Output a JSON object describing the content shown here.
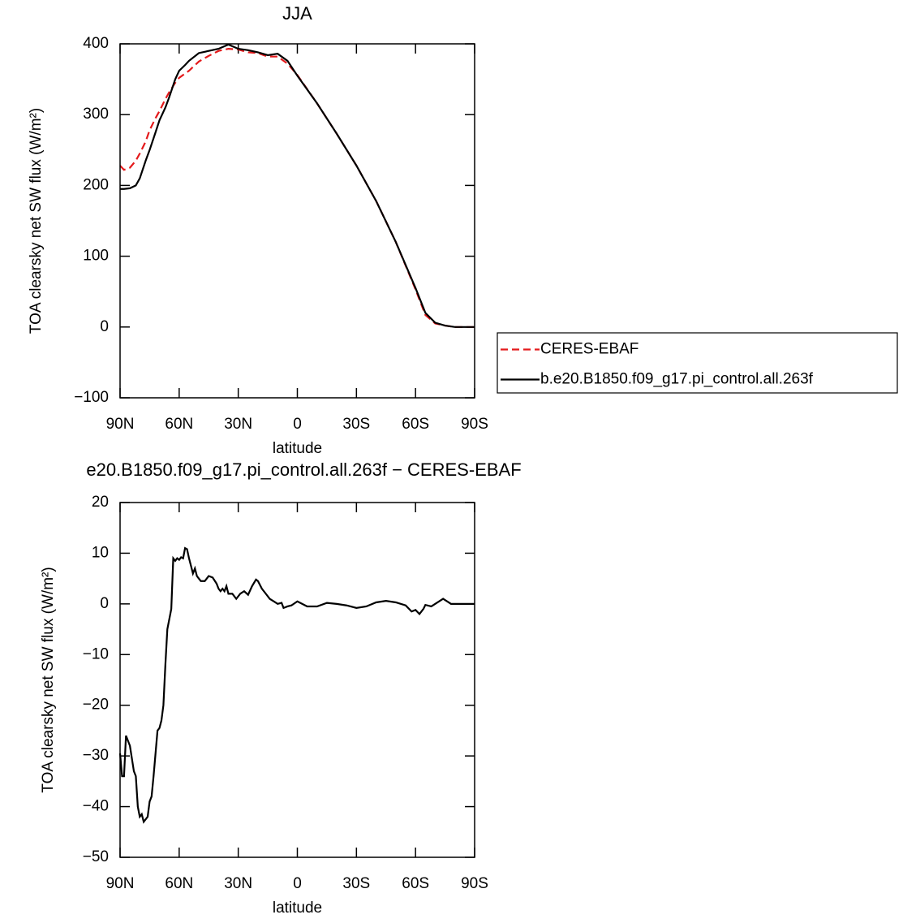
{
  "chart_data": [
    {
      "type": "line",
      "title": "JJA",
      "xlabel": "latitude",
      "ylabel": "TOA clearsky net SW flux (W/m²)",
      "xlim": [
        90,
        -90
      ],
      "xticks": [
        {
          "value": 90,
          "label": "90N"
        },
        {
          "value": 60,
          "label": "60N"
        },
        {
          "value": 30,
          "label": "30N"
        },
        0,
        {
          "value": -30,
          "label": "30S"
        },
        {
          "value": -60,
          "label": "60S"
        },
        {
          "value": -90,
          "label": "90S"
        }
      ],
      "ylim": [
        -100,
        400
      ],
      "yticks": [
        {
          "value": -100,
          "label": "−100"
        },
        0,
        100,
        200,
        300,
        400
      ],
      "legend": "outside-right",
      "x": [
        90,
        88,
        85,
        82,
        80,
        77,
        75,
        72,
        70,
        67,
        65,
        62,
        60,
        57,
        55,
        50,
        45,
        40,
        35,
        30,
        25,
        20,
        15,
        10,
        5,
        0,
        -10,
        -20,
        -30,
        -40,
        -50,
        -60,
        -65,
        -70,
        -75,
        -80,
        -90
      ],
      "series": [
        {
          "name": "CERES-EBAF",
          "color": "#e41a1c",
          "dash": true,
          "values": [
            228,
            222,
            225,
            235,
            245,
            262,
            278,
            295,
            305,
            322,
            332,
            345,
            352,
            358,
            362,
            375,
            383,
            390,
            393,
            392,
            388,
            387,
            382,
            382,
            372,
            356,
            316,
            273,
            228,
            178,
            120,
            53,
            17,
            5,
            2,
            0,
            0
          ]
        },
        {
          "name": "b.e20.B1850.f09_g17.pi_control.all.263f",
          "color": "#000000",
          "dash": false,
          "values": [
            195,
            195,
            196,
            200,
            210,
            235,
            250,
            275,
            292,
            310,
            325,
            350,
            362,
            370,
            376,
            387,
            390,
            393,
            399,
            393,
            391,
            388,
            384,
            386,
            376,
            355,
            316,
            273,
            228,
            178,
            120,
            55,
            20,
            6,
            2,
            0,
            0
          ]
        }
      ]
    },
    {
      "type": "line",
      "title": "e20.B1850.f09_g17.pi_control.all.263f − CERES-EBAF",
      "xlabel": "latitude",
      "ylabel": "TOA clearsky net SW flux (W/m²)",
      "xlim": [
        90,
        -90
      ],
      "xticks": [
        {
          "value": 90,
          "label": "90N"
        },
        {
          "value": 60,
          "label": "60N"
        },
        {
          "value": 30,
          "label": "30N"
        },
        0,
        {
          "value": -30,
          "label": "30S"
        },
        {
          "value": -60,
          "label": "60S"
        },
        {
          "value": -90,
          "label": "90S"
        }
      ],
      "ylim": [
        -50,
        20
      ],
      "yticks": [
        {
          "value": -50,
          "label": "−50"
        },
        {
          "value": -40,
          "label": "−40"
        },
        {
          "value": -30,
          "label": "−30"
        },
        {
          "value": -20,
          "label": "−20"
        },
        {
          "value": -10,
          "label": "−10"
        },
        0,
        10,
        20
      ],
      "x": [
        90,
        89,
        88,
        87,
        85,
        83,
        82,
        81,
        80,
        79,
        78,
        76,
        75,
        74,
        73,
        71,
        70,
        69,
        68,
        67,
        66,
        65,
        64,
        63,
        62,
        61,
        60,
        59,
        58,
        57,
        56,
        55,
        54,
        53,
        52,
        51,
        50,
        49,
        47,
        46,
        45,
        43,
        41,
        40,
        39,
        38,
        37,
        36,
        35,
        33,
        31,
        30,
        29,
        27,
        25,
        23,
        21,
        20,
        18,
        16,
        14,
        12,
        10,
        8,
        7,
        5,
        3,
        0,
        -5,
        -10,
        -15,
        -20,
        -25,
        -30,
        -35,
        -40,
        -45,
        -50,
        -55,
        -58,
        -60,
        -62,
        -64,
        -65,
        -68,
        -70,
        -74,
        -76,
        -78,
        -90
      ],
      "series": [
        {
          "name": "b.e20.B1850.f09_g17.pi_control.all.263f − CERES-EBAF",
          "color": "#000000",
          "dash": false,
          "values": [
            -29.5,
            -34,
            -34,
            -26,
            -28,
            -33,
            -34,
            -40,
            -42,
            -41.5,
            -43,
            -42,
            -39,
            -38,
            -34,
            -25,
            -24.5,
            -23,
            -20,
            -12,
            -5,
            -3,
            -1,
            9,
            8.5,
            9,
            8.7,
            9.2,
            9,
            11,
            10.8,
            9,
            7.5,
            6,
            7,
            5.5,
            5,
            4.5,
            4.5,
            5,
            5.5,
            5.2,
            4,
            3,
            2.5,
            3,
            2.5,
            3.5,
            2,
            2,
            1,
            1.5,
            2,
            2.5,
            1.8,
            3.5,
            4.8,
            4.5,
            3,
            2,
            1,
            0.5,
            0,
            0.2,
            -0.8,
            -0.5,
            -0.3,
            0.5,
            -0.5,
            -0.5,
            0.2,
            0,
            -0.3,
            -0.8,
            -0.5,
            0.3,
            0.6,
            0.3,
            -0.3,
            -1.5,
            -1.2,
            -2,
            -1,
            -0.2,
            -0.5,
            0,
            1,
            0.5,
            0,
            0
          ]
        }
      ]
    }
  ]
}
